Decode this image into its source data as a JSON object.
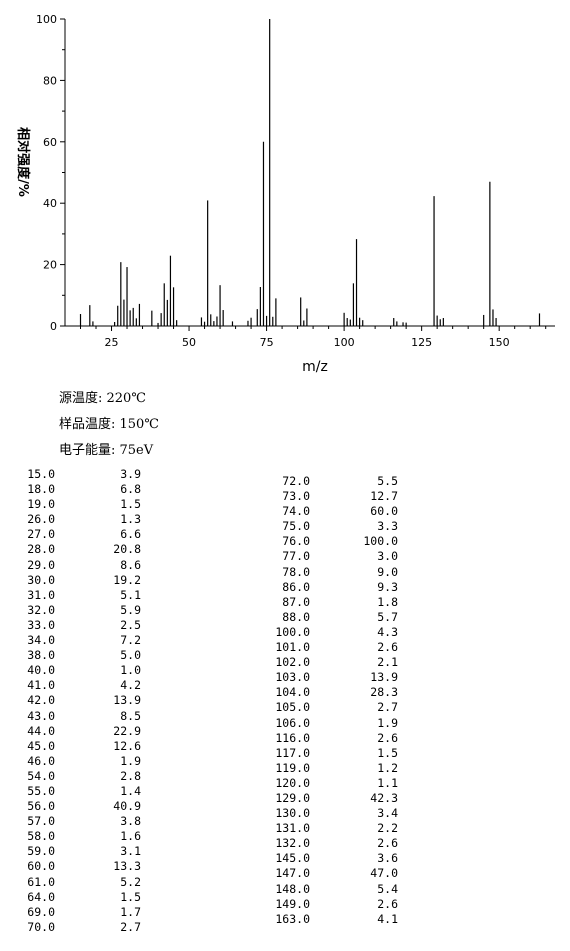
{
  "chart_data": {
    "type": "bar",
    "ylabel": "相对强度/%",
    "xlabel": "m/z",
    "xlim": [
      10,
      168
    ],
    "ylim": [
      0,
      100
    ],
    "x_ticks": [
      25,
      50,
      75,
      100,
      125,
      150
    ],
    "y_ticks": [
      0,
      20,
      40,
      60,
      80,
      100
    ],
    "grid": false,
    "peaks": [
      {
        "mz": 15,
        "abundance": 3.9
      },
      {
        "mz": 18,
        "abundance": 6.8
      },
      {
        "mz": 19,
        "abundance": 1.5
      },
      {
        "mz": 26,
        "abundance": 1.3
      },
      {
        "mz": 27,
        "abundance": 6.6
      },
      {
        "mz": 28,
        "abundance": 20.8
      },
      {
        "mz": 29,
        "abundance": 8.6
      },
      {
        "mz": 30,
        "abundance": 19.2
      },
      {
        "mz": 31,
        "abundance": 5.1
      },
      {
        "mz": 32,
        "abundance": 5.9
      },
      {
        "mz": 33,
        "abundance": 2.5
      },
      {
        "mz": 34,
        "abundance": 7.2
      },
      {
        "mz": 38,
        "abundance": 5.0
      },
      {
        "mz": 40,
        "abundance": 1.0
      },
      {
        "mz": 41,
        "abundance": 4.2
      },
      {
        "mz": 42,
        "abundance": 13.9
      },
      {
        "mz": 43,
        "abundance": 8.5
      },
      {
        "mz": 44,
        "abundance": 22.9
      },
      {
        "mz": 45,
        "abundance": 12.6
      },
      {
        "mz": 46,
        "abundance": 1.9
      },
      {
        "mz": 54,
        "abundance": 2.8
      },
      {
        "mz": 55,
        "abundance": 1.4
      },
      {
        "mz": 56,
        "abundance": 40.9
      },
      {
        "mz": 57,
        "abundance": 3.8
      },
      {
        "mz": 58,
        "abundance": 1.6
      },
      {
        "mz": 59,
        "abundance": 3.1
      },
      {
        "mz": 60,
        "abundance": 13.3
      },
      {
        "mz": 61,
        "abundance": 5.2
      },
      {
        "mz": 64,
        "abundance": 1.5
      },
      {
        "mz": 69,
        "abundance": 1.7
      },
      {
        "mz": 70,
        "abundance": 2.7
      },
      {
        "mz": 72,
        "abundance": 5.5
      },
      {
        "mz": 73,
        "abundance": 12.7
      },
      {
        "mz": 74,
        "abundance": 60.0
      },
      {
        "mz": 75,
        "abundance": 3.3
      },
      {
        "mz": 76,
        "abundance": 100.0
      },
      {
        "mz": 77,
        "abundance": 3.0
      },
      {
        "mz": 78,
        "abundance": 9.0
      },
      {
        "mz": 86,
        "abundance": 9.3
      },
      {
        "mz": 87,
        "abundance": 1.8
      },
      {
        "mz": 88,
        "abundance": 5.7
      },
      {
        "mz": 100,
        "abundance": 4.3
      },
      {
        "mz": 101,
        "abundance": 2.6
      },
      {
        "mz": 102,
        "abundance": 2.1
      },
      {
        "mz": 103,
        "abundance": 13.9
      },
      {
        "mz": 104,
        "abundance": 28.3
      },
      {
        "mz": 105,
        "abundance": 2.7
      },
      {
        "mz": 106,
        "abundance": 1.9
      },
      {
        "mz": 116,
        "abundance": 2.6
      },
      {
        "mz": 117,
        "abundance": 1.5
      },
      {
        "mz": 119,
        "abundance": 1.2
      },
      {
        "mz": 120,
        "abundance": 1.1
      },
      {
        "mz": 129,
        "abundance": 42.3
      },
      {
        "mz": 130,
        "abundance": 3.4
      },
      {
        "mz": 131,
        "abundance": 2.2
      },
      {
        "mz": 132,
        "abundance": 2.6
      },
      {
        "mz": 145,
        "abundance": 3.6
      },
      {
        "mz": 147,
        "abundance": 47.0
      },
      {
        "mz": 148,
        "abundance": 5.4
      },
      {
        "mz": 149,
        "abundance": 2.6
      },
      {
        "mz": 163,
        "abundance": 4.1
      }
    ]
  },
  "meta": {
    "source_temp": "源温度: 220℃",
    "sample_temp": "样品温度: 150℃",
    "electron_energy": "电子能量: 75eV"
  },
  "table_left": [
    [
      "15.0",
      "3.9"
    ],
    [
      "18.0",
      "6.8"
    ],
    [
      "19.0",
      "1.5"
    ],
    [
      "26.0",
      "1.3"
    ],
    [
      "27.0",
      "6.6"
    ],
    [
      "28.0",
      "20.8"
    ],
    [
      "29.0",
      "8.6"
    ],
    [
      "30.0",
      "19.2"
    ],
    [
      "31.0",
      "5.1"
    ],
    [
      "32.0",
      "5.9"
    ],
    [
      "33.0",
      "2.5"
    ],
    [
      "34.0",
      "7.2"
    ],
    [
      "38.0",
      "5.0"
    ],
    [
      "40.0",
      "1.0"
    ],
    [
      "41.0",
      "4.2"
    ],
    [
      "42.0",
      "13.9"
    ],
    [
      "43.0",
      "8.5"
    ],
    [
      "44.0",
      "22.9"
    ],
    [
      "45.0",
      "12.6"
    ],
    [
      "46.0",
      "1.9"
    ],
    [
      "54.0",
      "2.8"
    ],
    [
      "55.0",
      "1.4"
    ],
    [
      "56.0",
      "40.9"
    ],
    [
      "57.0",
      "3.8"
    ],
    [
      "58.0",
      "1.6"
    ],
    [
      "59.0",
      "3.1"
    ],
    [
      "60.0",
      "13.3"
    ],
    [
      "61.0",
      "5.2"
    ],
    [
      "64.0",
      "1.5"
    ],
    [
      "69.0",
      "1.7"
    ],
    [
      "70.0",
      "2.7"
    ]
  ],
  "table_right": [
    [
      "72.0",
      "5.5"
    ],
    [
      "73.0",
      "12.7"
    ],
    [
      "74.0",
      "60.0"
    ],
    [
      "75.0",
      "3.3"
    ],
    [
      "76.0",
      "100.0"
    ],
    [
      "77.0",
      "3.0"
    ],
    [
      "78.0",
      "9.0"
    ],
    [
      "86.0",
      "9.3"
    ],
    [
      "87.0",
      "1.8"
    ],
    [
      "88.0",
      "5.7"
    ],
    [
      "100.0",
      "4.3"
    ],
    [
      "101.0",
      "2.6"
    ],
    [
      "102.0",
      "2.1"
    ],
    [
      "103.0",
      "13.9"
    ],
    [
      "104.0",
      "28.3"
    ],
    [
      "105.0",
      "2.7"
    ],
    [
      "106.0",
      "1.9"
    ],
    [
      "116.0",
      "2.6"
    ],
    [
      "117.0",
      "1.5"
    ],
    [
      "119.0",
      "1.2"
    ],
    [
      "120.0",
      "1.1"
    ],
    [
      "129.0",
      "42.3"
    ],
    [
      "130.0",
      "3.4"
    ],
    [
      "131.0",
      "2.2"
    ],
    [
      "132.0",
      "2.6"
    ],
    [
      "145.0",
      "3.6"
    ],
    [
      "147.0",
      "47.0"
    ],
    [
      "148.0",
      "5.4"
    ],
    [
      "149.0",
      "2.6"
    ],
    [
      "163.0",
      "4.1"
    ]
  ]
}
